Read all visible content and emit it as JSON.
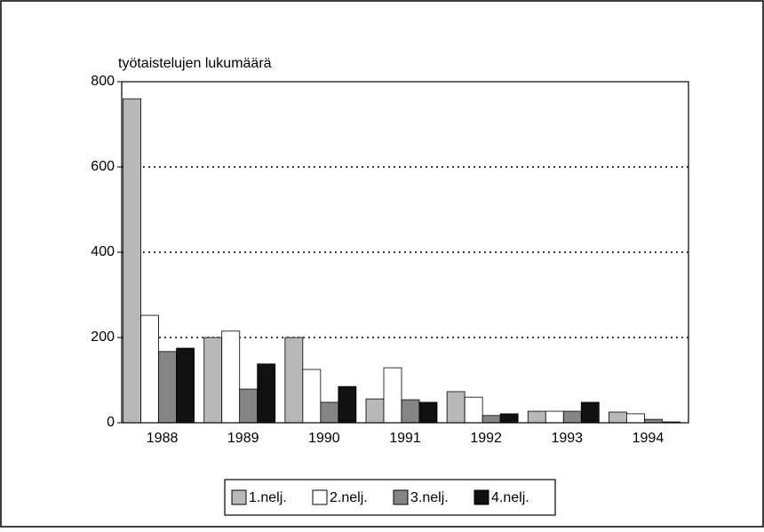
{
  "chart_data": {
    "type": "bar",
    "y_label": "työtaistelujen lukumäärä",
    "categories": [
      "1988",
      "1989",
      "1990",
      "1991",
      "1992",
      "1993",
      "1994"
    ],
    "series": [
      {
        "name": "1.nelj.",
        "color": "#b8b8b8",
        "values": [
          760,
          200,
          200,
          56,
          73,
          27,
          25
        ]
      },
      {
        "name": "2.nelj.",
        "color": "#ffffff",
        "values": [
          252,
          215,
          125,
          129,
          60,
          27,
          21
        ]
      },
      {
        "name": "3.nelj.",
        "color": "#858585",
        "values": [
          167,
          79,
          48,
          54,
          17,
          27,
          8
        ]
      },
      {
        "name": "4.nelj.",
        "color": "#111111",
        "values": [
          175,
          138,
          85,
          48,
          21,
          48,
          2
        ]
      }
    ],
    "ylim": [
      0,
      800
    ],
    "yticks": [
      0,
      200,
      400,
      600,
      800
    ],
    "grid": true,
    "legend": "bottom"
  }
}
